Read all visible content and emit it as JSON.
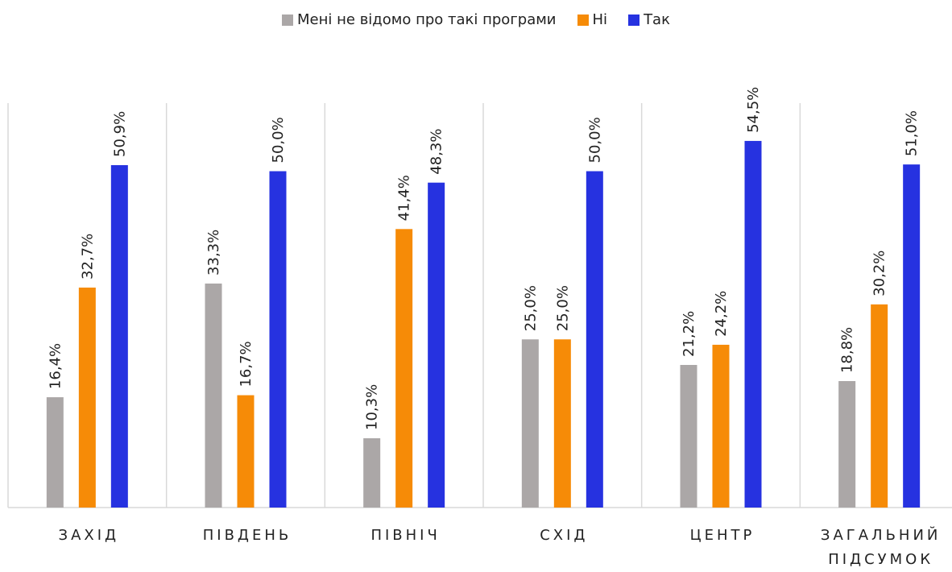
{
  "chart_data": {
    "type": "bar",
    "categories": [
      "ЗАХІД",
      "ПІВДЕНЬ",
      "ПІВНІЧ",
      "СХІД",
      "ЦЕНТР",
      "ЗАГАЛЬНИЙ ПІДСУМОК"
    ],
    "series": [
      {
        "name": "Мені не відомо про такі програми",
        "color": "#aba7a7",
        "values": [
          16.4,
          33.3,
          10.3,
          25.0,
          21.2,
          18.8
        ],
        "value_labels": [
          "16,4%",
          "33,3%",
          "10,3%",
          "25,0%",
          "21,2%",
          "18,8%"
        ]
      },
      {
        "name": "Ні",
        "color": "#f68b07",
        "values": [
          32.7,
          16.7,
          41.4,
          25.0,
          24.2,
          30.2
        ],
        "value_labels": [
          "32,7%",
          "16,7%",
          "41,4%",
          "25,0%",
          "24,2%",
          "30,2%"
        ]
      },
      {
        "name": "Так",
        "color": "#2632e0",
        "values": [
          50.9,
          50.0,
          48.3,
          50.0,
          54.5,
          51.0
        ],
        "value_labels": [
          "50,9%",
          "50,0%",
          "48,3%",
          "50,0%",
          "54,5%",
          "51,0%"
        ]
      }
    ],
    "legend": "top"
  }
}
